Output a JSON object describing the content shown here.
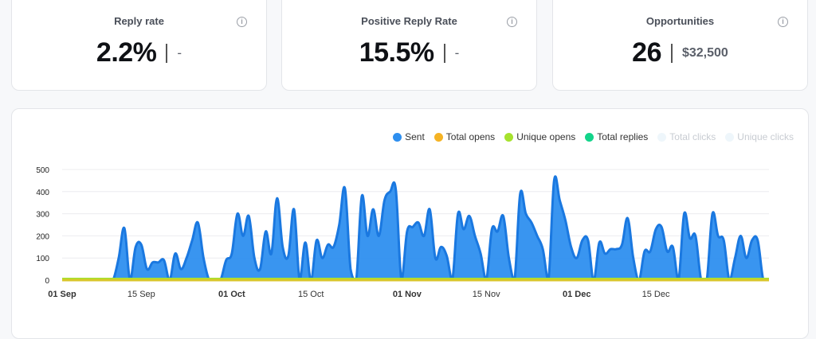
{
  "stats": [
    {
      "title": "Reply rate",
      "value": "2.2%",
      "secondary": "-",
      "info_icon": "info-icon"
    },
    {
      "title": "Positive Reply Rate",
      "value": "15.5%",
      "secondary": "-",
      "info_icon": "info-icon"
    },
    {
      "title": "Opportunities",
      "value": "26",
      "secondary": "$32,500",
      "info_icon": "info-icon"
    }
  ],
  "legend": [
    {
      "label": "Sent",
      "color": "#2e8fef",
      "enabled": true
    },
    {
      "label": "Total opens",
      "color": "#f5b324",
      "enabled": true
    },
    {
      "label": "Unique opens",
      "color": "#a6e22e",
      "enabled": true
    },
    {
      "label": "Total replies",
      "color": "#13d48a",
      "enabled": true
    },
    {
      "label": "Total clicks",
      "color": "#e8f3fa",
      "enabled": false
    },
    {
      "label": "Unique clicks",
      "color": "#e8f3fa",
      "enabled": false
    }
  ],
  "chart_data": {
    "type": "area",
    "ylim": [
      0,
      500
    ],
    "yticks": [
      0,
      100,
      200,
      300,
      400,
      500
    ],
    "xticks": [
      {
        "day": 0,
        "label": "01 Sep",
        "bold": true
      },
      {
        "day": 14,
        "label": "15 Sep",
        "bold": false
      },
      {
        "day": 30,
        "label": "01 Oct",
        "bold": true
      },
      {
        "day": 44,
        "label": "15 Oct",
        "bold": false
      },
      {
        "day": 61,
        "label": "01 Nov",
        "bold": true
      },
      {
        "day": 75,
        "label": "15 Nov",
        "bold": false
      },
      {
        "day": 91,
        "label": "01 Dec",
        "bold": true
      },
      {
        "day": 105,
        "label": "15 Dec",
        "bold": false
      }
    ],
    "series": [
      {
        "name": "Sent",
        "color": "#2e8fef",
        "values": [
          0,
          0,
          0,
          0,
          0,
          0,
          0,
          0,
          0,
          0,
          100,
          235,
          0,
          150,
          160,
          50,
          80,
          80,
          90,
          0,
          120,
          50,
          100,
          180,
          260,
          100,
          0,
          0,
          0,
          90,
          120,
          300,
          200,
          290,
          100,
          50,
          220,
          120,
          370,
          150,
          110,
          320,
          0,
          170,
          0,
          180,
          100,
          160,
          150,
          250,
          415,
          50,
          0,
          380,
          200,
          320,
          200,
          360,
          400,
          410,
          0,
          220,
          240,
          260,
          200,
          320,
          100,
          150,
          110,
          0,
          300,
          230,
          290,
          200,
          120,
          0,
          230,
          220,
          290,
          100,
          0,
          390,
          300,
          260,
          200,
          140,
          0,
          450,
          360,
          270,
          150,
          100,
          180,
          180,
          0,
          170,
          120,
          140,
          140,
          160,
          280,
          100,
          0,
          130,
          130,
          230,
          240,
          130,
          150,
          0,
          300,
          190,
          200,
          0,
          0,
          300,
          200,
          180,
          0,
          100,
          200,
          100,
          180,
          180,
          0,
          0
        ]
      },
      {
        "name": "Total opens",
        "color": "#f5b324",
        "values": []
      },
      {
        "name": "Unique opens",
        "color": "#a6e22e",
        "values": []
      },
      {
        "name": "Total replies",
        "color": "#13d48a",
        "values": []
      }
    ]
  }
}
